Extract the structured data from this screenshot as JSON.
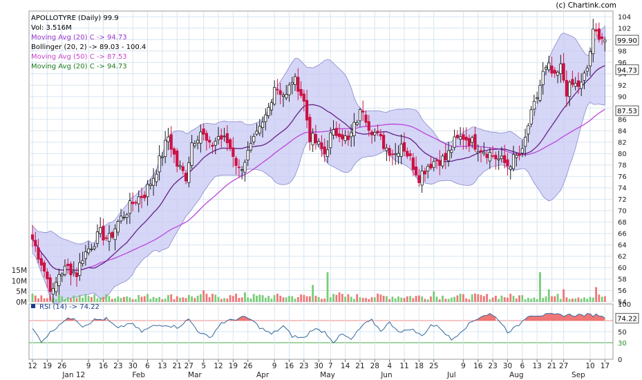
{
  "chart_data": {
    "type": "candlestick",
    "symbol": "APOLLOTYRE",
    "frequency": "Daily",
    "last_price": "99.9",
    "credit": "(c) Chartink.com",
    "legend": [
      {
        "label": "APOLLOTYRE (Daily) 99.9",
        "color": "#000000"
      },
      {
        "label": "Vol: 3.516M",
        "color": "#000000"
      },
      {
        "label": "Moving Avg (20) C -> 94.73",
        "color": "#9933cc"
      },
      {
        "label": "Bollinger (20, 2) -> 89.03 - 100.4",
        "color": "#000000"
      },
      {
        "label": "Moving Avg (50) C -> 87.53",
        "color": "#cc44cc"
      },
      {
        "label": "Moving Avg (20) C -> 94.73",
        "color": "#1a7a1a"
      }
    ],
    "price_axis": {
      "min": 54,
      "max": 105,
      "ticks": [
        "104",
        "102",
        "100",
        "98",
        "96",
        "94",
        "92",
        "90",
        "88",
        "86",
        "84",
        "82",
        "80",
        "78",
        "76",
        "74",
        "72",
        "70",
        "68",
        "66",
        "64",
        "62",
        "60",
        "58",
        "56",
        "54"
      ]
    },
    "volume_axis": {
      "ticks": [
        "15M",
        "10M",
        "5M",
        "0M"
      ]
    },
    "value_tags": [
      {
        "label": "99.90",
        "value": 99.9
      },
      {
        "label": "94.73",
        "value": 94.73
      },
      {
        "label": "87.53",
        "value": 87.53
      }
    ],
    "rsi": {
      "label": "RSI (14) -> 74.22",
      "value": 74.22,
      "value_label": "74.22",
      "upper": 70,
      "lower": 30,
      "ticks": [
        "100",
        "70",
        "50",
        "30",
        "0"
      ],
      "anchors": [
        [
          0,
          55
        ],
        [
          3,
          33
        ],
        [
          6,
          48
        ],
        [
          10,
          68
        ],
        [
          14,
          76
        ],
        [
          17,
          60
        ],
        [
          21,
          71
        ],
        [
          25,
          73
        ],
        [
          29,
          55
        ],
        [
          33,
          66
        ],
        [
          37,
          50
        ],
        [
          41,
          60
        ],
        [
          45,
          63
        ],
        [
          49,
          58
        ],
        [
          53,
          72
        ],
        [
          56,
          52
        ],
        [
          60,
          38
        ],
        [
          64,
          66
        ],
        [
          67,
          70
        ],
        [
          71,
          76
        ],
        [
          74,
          72
        ],
        [
          77,
          58
        ],
        [
          81,
          45
        ],
        [
          85,
          60
        ],
        [
          88,
          42
        ],
        [
          92,
          38
        ],
        [
          95,
          55
        ],
        [
          99,
          50
        ],
        [
          102,
          32
        ],
        [
          105,
          45
        ],
        [
          108,
          35
        ],
        [
          112,
          62
        ],
        [
          115,
          70
        ],
        [
          118,
          52
        ],
        [
          121,
          66
        ],
        [
          125,
          48
        ],
        [
          128,
          56
        ],
        [
          132,
          42
        ],
        [
          135,
          62
        ],
        [
          138,
          58
        ],
        [
          142,
          35
        ],
        [
          146,
          55
        ],
        [
          149,
          68
        ],
        [
          152,
          78
        ],
        [
          155,
          82
        ],
        [
          158,
          72
        ],
        [
          161,
          50
        ],
        [
          164,
          58
        ],
        [
          168,
          80
        ]
      ]
    },
    "x_axis": {
      "days": [
        {
          "label": "12",
          "i": 0
        },
        {
          "label": "19",
          "i": 5
        },
        {
          "label": "26",
          "i": 10
        },
        {
          "label": "9",
          "i": 19
        },
        {
          "label": "16",
          "i": 24
        },
        {
          "label": "23",
          "i": 29
        },
        {
          "label": "30",
          "i": 34
        },
        {
          "label": "6",
          "i": 39
        },
        {
          "label": "13",
          "i": 44
        },
        {
          "label": "21",
          "i": 49
        },
        {
          "label": "27",
          "i": 53
        },
        {
          "label": "5",
          "i": 58
        },
        {
          "label": "12",
          "i": 63
        },
        {
          "label": "19",
          "i": 68
        },
        {
          "label": "26",
          "i": 73
        },
        {
          "label": "9",
          "i": 82
        },
        {
          "label": "16",
          "i": 87
        },
        {
          "label": "23",
          "i": 92
        },
        {
          "label": "30",
          "i": 97
        },
        {
          "label": "7",
          "i": 101
        },
        {
          "label": "14",
          "i": 106
        },
        {
          "label": "21",
          "i": 111
        },
        {
          "label": "28",
          "i": 116
        },
        {
          "label": "4",
          "i": 121
        },
        {
          "label": "11",
          "i": 126
        },
        {
          "label": "18",
          "i": 131
        },
        {
          "label": "25",
          "i": 136
        },
        {
          "label": "9",
          "i": 146
        },
        {
          "label": "16",
          "i": 151
        },
        {
          "label": "23",
          "i": 156
        },
        {
          "label": "30",
          "i": 161
        },
        {
          "label": "6",
          "i": 166
        },
        {
          "label": "13",
          "i": 171
        },
        {
          "label": "21",
          "i": 176
        },
        {
          "label": "27",
          "i": 180
        },
        {
          "label": "10",
          "i": 189
        },
        {
          "label": "17",
          "i": 194
        }
      ],
      "months": [
        {
          "label": "Jan 12",
          "i": 14
        },
        {
          "label": "Feb",
          "i": 36
        },
        {
          "label": "Mar",
          "i": 55
        },
        {
          "label": "Apr",
          "i": 78
        },
        {
          "label": "May",
          "i": 100
        },
        {
          "label": "Jun",
          "i": 120
        },
        {
          "label": "Jul",
          "i": 142
        },
        {
          "label": "Aug",
          "i": 164
        },
        {
          "label": "Sep",
          "i": 185
        }
      ]
    },
    "price_anchors": [
      [
        0,
        65
      ],
      [
        3,
        61
      ],
      [
        5,
        58
      ],
      [
        7,
        55.5
      ],
      [
        9,
        59
      ],
      [
        12,
        60
      ],
      [
        15,
        59
      ],
      [
        17,
        62
      ],
      [
        20,
        64
      ],
      [
        23,
        66
      ],
      [
        26,
        65
      ],
      [
        29,
        68
      ],
      [
        32,
        70
      ],
      [
        35,
        72
      ],
      [
        38,
        73
      ],
      [
        41,
        76
      ],
      [
        44,
        80
      ],
      [
        46,
        83
      ],
      [
        49,
        78
      ],
      [
        52,
        76
      ],
      [
        54,
        82
      ],
      [
        57,
        84
      ],
      [
        60,
        81
      ],
      [
        63,
        83
      ],
      [
        66,
        82
      ],
      [
        68,
        80
      ],
      [
        70,
        77
      ],
      [
        72,
        79
      ],
      [
        75,
        82
      ],
      [
        78,
        85
      ],
      [
        80,
        88
      ],
      [
        82,
        92
      ],
      [
        84,
        91
      ],
      [
        86,
        90
      ],
      [
        88,
        93
      ],
      [
        90,
        92
      ],
      [
        92,
        89
      ],
      [
        94,
        83
      ],
      [
        96,
        82
      ],
      [
        99,
        80
      ],
      [
        101,
        83
      ],
      [
        104,
        84
      ],
      [
        107,
        82
      ],
      [
        110,
        86
      ],
      [
        112,
        88
      ],
      [
        114,
        85
      ],
      [
        117,
        83
      ],
      [
        120,
        81
      ],
      [
        123,
        80
      ],
      [
        125,
        82
      ],
      [
        128,
        79
      ],
      [
        131,
        76
      ],
      [
        134,
        78
      ],
      [
        137,
        79
      ],
      [
        140,
        79
      ],
      [
        143,
        82
      ],
      [
        146,
        83
      ],
      [
        149,
        82
      ],
      [
        152,
        81
      ],
      [
        155,
        80
      ],
      [
        158,
        79
      ],
      [
        161,
        78
      ],
      [
        163,
        79
      ],
      [
        166,
        80
      ],
      [
        168,
        85
      ],
      [
        171,
        90
      ],
      [
        173,
        94
      ],
      [
        175,
        95
      ],
      [
        177,
        93
      ],
      [
        179,
        95
      ],
      [
        181,
        91
      ],
      [
        183,
        92
      ],
      [
        186,
        92
      ],
      [
        188,
        95
      ],
      [
        190,
        101
      ],
      [
        192,
        101
      ],
      [
        194,
        99.9
      ]
    ],
    "volume_spikes": [
      [
        58,
        5.5
      ],
      [
        72,
        4.5
      ],
      [
        95,
        8
      ],
      [
        100,
        14
      ],
      [
        104,
        4.5
      ],
      [
        136,
        5
      ],
      [
        172,
        14
      ],
      [
        175,
        6
      ],
      [
        180,
        6
      ],
      [
        191,
        7
      ]
    ],
    "series_styles": {
      "up_color": "#1a1a1a",
      "down_color": "#cc1144",
      "vol_up": "#77cc77",
      "vol_down": "#ee7777",
      "band_fill": "#c8c8f4",
      "band_stroke": "#8888cc",
      "ma20_color": "#6a2c8c",
      "ma50_color": "#bb44dd",
      "rsi_color": "#336699",
      "rsi_hot": "#ee5555"
    }
  }
}
